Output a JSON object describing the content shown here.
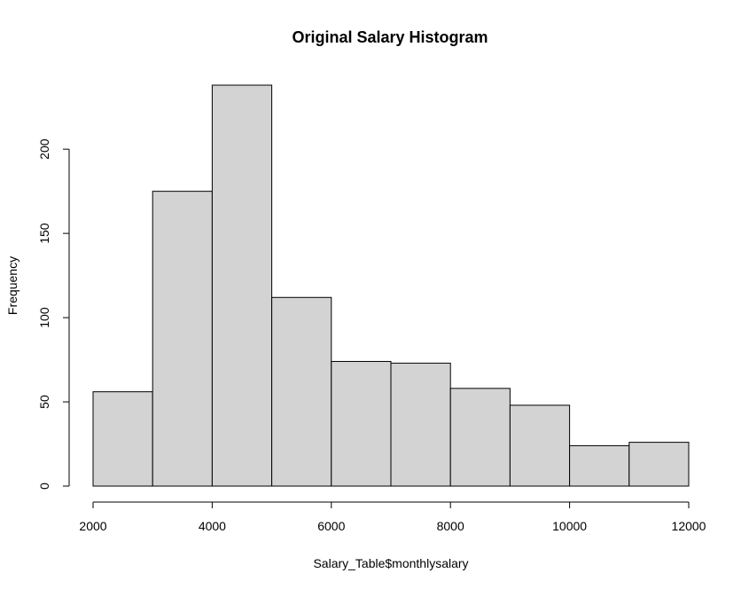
{
  "chart_data": {
    "type": "bar",
    "title": "Original Salary Histogram",
    "xlabel": "Salary_Table$monthlysalary",
    "ylabel": "Frequency",
    "bins": [
      {
        "from": 2000,
        "to": 3000,
        "count": 56
      },
      {
        "from": 3000,
        "to": 4000,
        "count": 175
      },
      {
        "from": 4000,
        "to": 5000,
        "count": 238
      },
      {
        "from": 5000,
        "to": 6000,
        "count": 112
      },
      {
        "from": 6000,
        "to": 7000,
        "count": 74
      },
      {
        "from": 7000,
        "to": 8000,
        "count": 73
      },
      {
        "from": 8000,
        "to": 9000,
        "count": 58
      },
      {
        "from": 9000,
        "to": 10000,
        "count": 48
      },
      {
        "from": 10000,
        "to": 11000,
        "count": 24
      },
      {
        "from": 11000,
        "to": 12000,
        "count": 26
      }
    ],
    "xticks": [
      2000,
      4000,
      6000,
      8000,
      10000,
      12000
    ],
    "yticks": [
      0,
      50,
      100,
      150,
      200
    ],
    "xlim": [
      2000,
      12000
    ],
    "ylim": [
      0,
      238
    ],
    "grid": false,
    "bar_color": "#d3d3d3",
    "edge_color": "#000000"
  }
}
